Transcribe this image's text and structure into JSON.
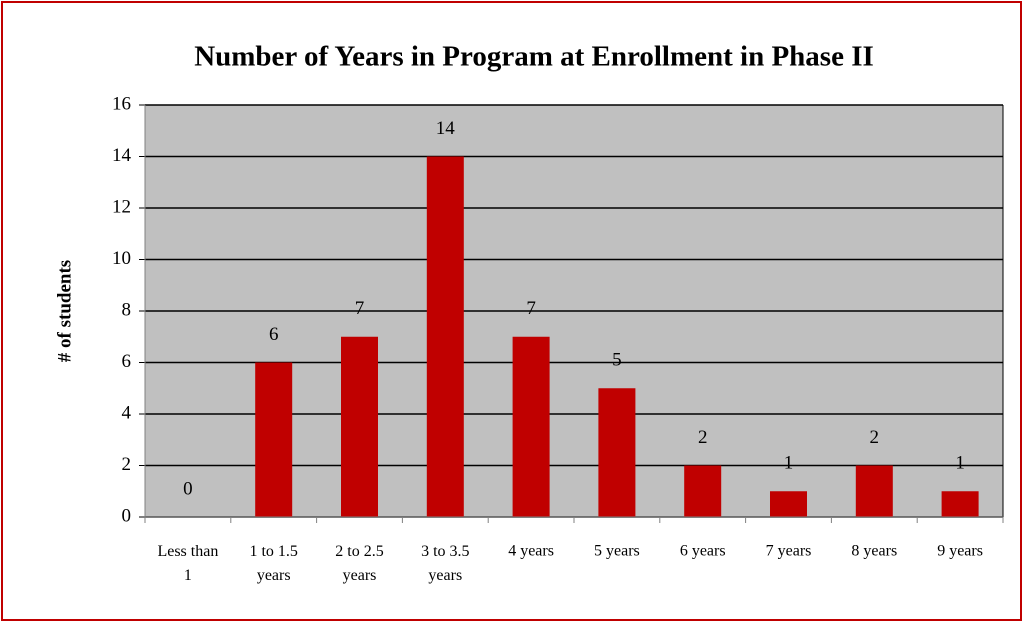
{
  "chart_data": {
    "type": "bar",
    "title": "Number of Years in Program at Enrollment in Phase II",
    "y_label": "# of students",
    "categories": [
      "Less than 1",
      "1 to 1.5 years",
      "2 to 2.5 years",
      "3 to 3.5 years",
      "4 years",
      "5 years",
      "6 years",
      "7 years",
      "8 years",
      "9 years"
    ],
    "values": [
      0,
      6,
      7,
      14,
      7,
      5,
      2,
      1,
      2,
      1
    ],
    "color": "#c00000",
    "ylim": [
      0,
      16
    ],
    "yticks": [
      0,
      2,
      4,
      6,
      8,
      10,
      12,
      14,
      16
    ],
    "grid": true
  }
}
